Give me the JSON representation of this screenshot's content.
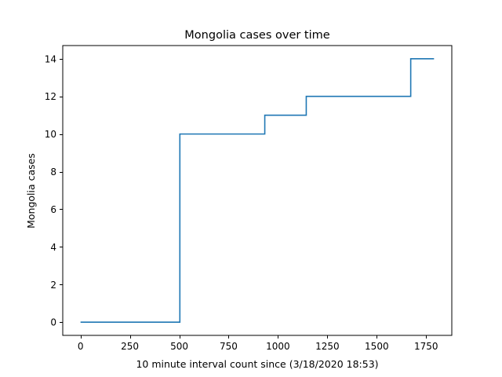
{
  "chart_data": {
    "type": "line",
    "step": "post",
    "title": "Mongolia cases over time",
    "xlabel": "10 minute interval count since (3/18/2020 18:53)",
    "ylabel": "Mongolia cases",
    "xlim": [
      -90,
      1880
    ],
    "ylim": [
      -0.7,
      14.7
    ],
    "xticks": [
      0,
      250,
      500,
      750,
      1000,
      1250,
      1500,
      1750
    ],
    "yticks": [
      0,
      2,
      4,
      6,
      8,
      10,
      12,
      14
    ],
    "grid": false,
    "legend": "none",
    "series": [
      {
        "color": "#1f77b4",
        "x": [
          0,
          503,
          933,
          1143,
          1672,
          1790
        ],
        "y": [
          0,
          10,
          11,
          12,
          14,
          14
        ]
      }
    ]
  }
}
